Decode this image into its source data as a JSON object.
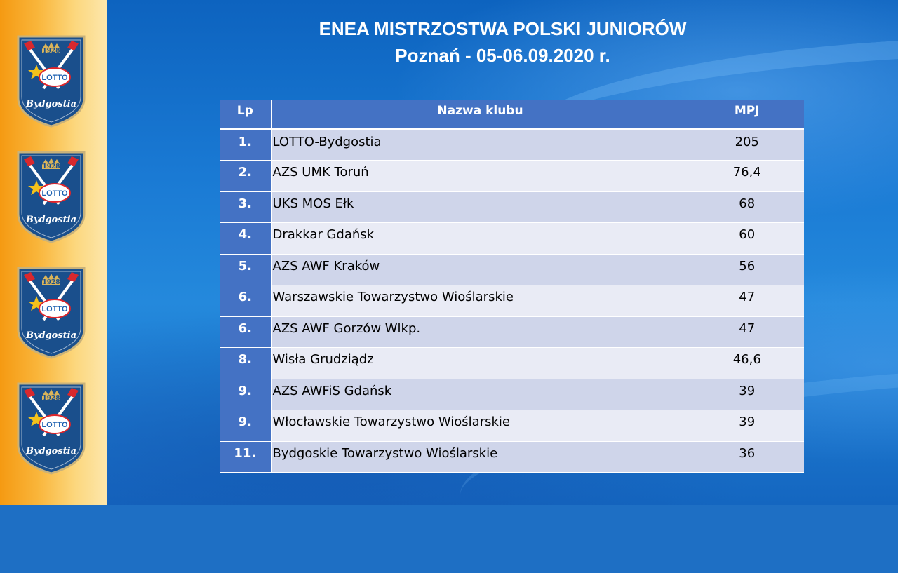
{
  "header": {
    "title": "ENEA MISTRZOSTWA POLSKI JUNIORÓW",
    "subtitle": "Poznań -  05-06.09.2020 r."
  },
  "logo": {
    "year": "1928",
    "brand": "LOTTO",
    "club": "Bydgostia",
    "count": 4
  },
  "table": {
    "headers": {
      "lp": "Lp",
      "name": "Nazwa klubu",
      "mpj": "MPJ"
    },
    "rows": [
      {
        "lp": "1.",
        "name": " LOTTO-Bydgostia",
        "mpj": "205"
      },
      {
        "lp": "2.",
        "name": "AZS UMK Toruń",
        "mpj": "76,4"
      },
      {
        "lp": "3.",
        "name": "UKS MOS Ełk",
        "mpj": "68"
      },
      {
        "lp": "4.",
        "name": "Drakkar Gdańsk",
        "mpj": "60"
      },
      {
        "lp": "5.",
        "name": "AZS AWF Kraków",
        "mpj": "56"
      },
      {
        "lp": "6.",
        "name": "Warszawskie Towarzystwo Wioślarskie",
        "mpj": "47"
      },
      {
        "lp": "6.",
        "name": "AZS AWF Gorzów  Wlkp.",
        "mpj": "47"
      },
      {
        "lp": "8.",
        "name": "Wisła Grudziądz",
        "mpj": "46,6"
      },
      {
        "lp": "9.",
        "name": "AZS AWFiS Gdańsk",
        "mpj": "39"
      },
      {
        "lp": "9.",
        "name": "Włocławskie Towarzystwo Wioślarskie",
        "mpj": "39"
      },
      {
        "lp": "11.",
        "name": "Bydgoskie Towarzystwo Wioślarskie",
        "mpj": "36"
      }
    ]
  },
  "colors": {
    "header_cell": "#4472c4",
    "row_odd": "#cfd5ea",
    "row_even": "#e9ebf5",
    "sidebar": "#f59a12",
    "background": "#1e6fc4"
  }
}
